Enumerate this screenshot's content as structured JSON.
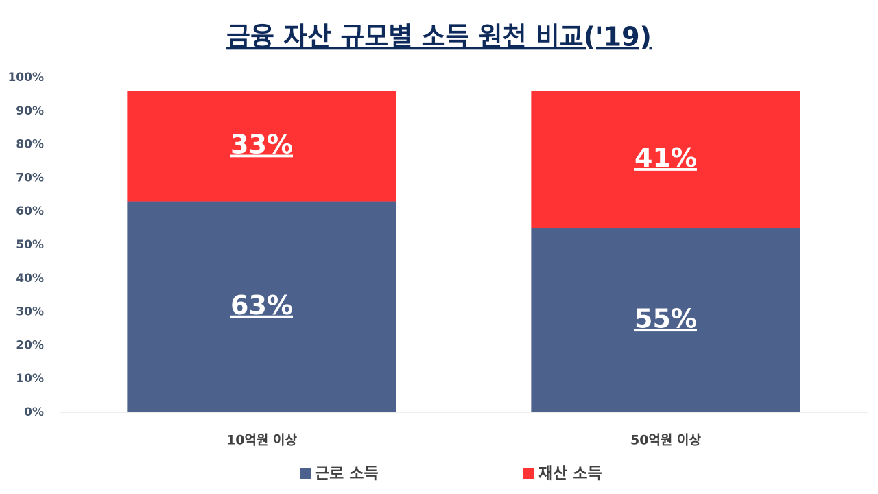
{
  "chart_data": {
    "type": "stacked_bar",
    "title": "금융 자산 규모별 소득 원천 비교('19)",
    "categories": [
      "10억원 이상",
      "50억원 이상"
    ],
    "series": [
      {
        "name": "근로 소득",
        "color": "#4c618c",
        "values": [
          63,
          55
        ],
        "value_labels": [
          "63%",
          "55%"
        ]
      },
      {
        "name": "재산 소득",
        "color": "#ff3334",
        "values": [
          33,
          41
        ],
        "value_labels": [
          "33%",
          "41%"
        ]
      }
    ],
    "ylim": [
      0,
      100
    ],
    "yticks": [
      {
        "value": 0,
        "label": "0%"
      },
      {
        "value": 10,
        "label": "10%"
      },
      {
        "value": 20,
        "label": "20%"
      },
      {
        "value": 30,
        "label": "30%"
      },
      {
        "value": 40,
        "label": "40%"
      },
      {
        "value": 50,
        "label": "50%"
      },
      {
        "value": 60,
        "label": "60%"
      },
      {
        "value": 70,
        "label": "70%"
      },
      {
        "value": 80,
        "label": "80%"
      },
      {
        "value": 90,
        "label": "90%"
      },
      {
        "value": 100,
        "label": "100%"
      }
    ],
    "grid": false,
    "legend": "bottom"
  }
}
